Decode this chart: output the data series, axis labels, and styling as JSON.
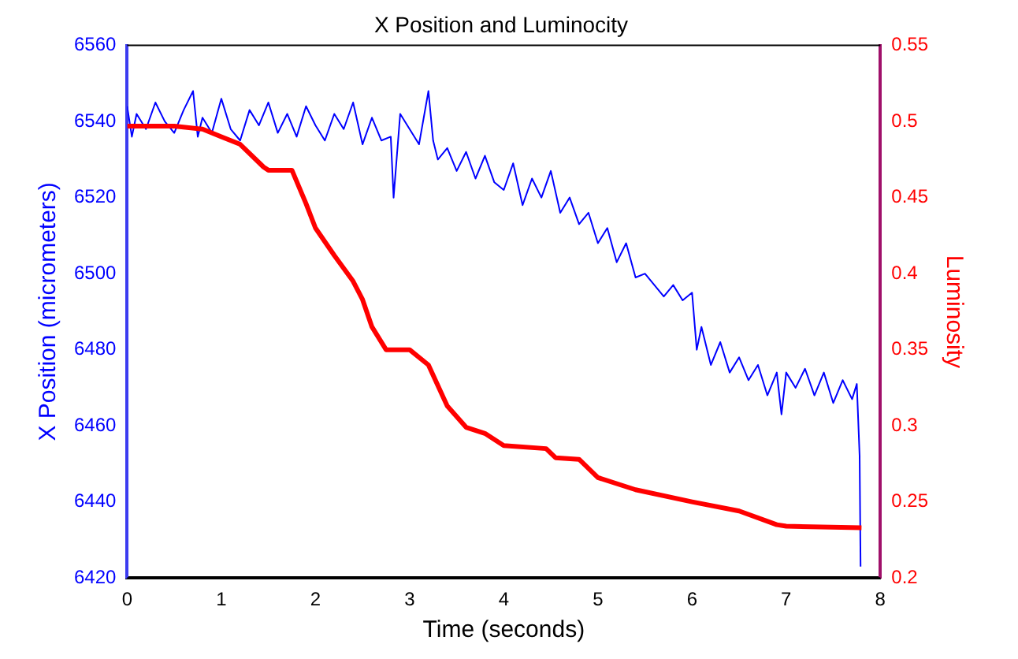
{
  "chart_data": {
    "type": "line",
    "title": "X Position and Luminocity",
    "xlabel": "Time (seconds)",
    "ylabel": "X Position (micrometers)",
    "y2label": "Luminosity",
    "xlim": [
      0,
      8
    ],
    "xticks": [
      0,
      1,
      2,
      3,
      4,
      5,
      6,
      7,
      8
    ],
    "ylim": [
      6420,
      6560
    ],
    "yticks": [
      6420,
      6440,
      6460,
      6480,
      6500,
      6520,
      6540,
      6560
    ],
    "y2lim": [
      0.2,
      0.55
    ],
    "y2ticks": [
      0.2,
      0.25,
      0.3,
      0.35,
      0.4,
      0.45,
      0.5,
      0.55
    ],
    "grid": false,
    "legend": false,
    "marker": "none",
    "line_style": "solid",
    "series": [
      {
        "color": "#0000ff",
        "x": [
          0,
          0.05,
          0.1,
          0.2,
          0.3,
          0.4,
          0.5,
          0.6,
          0.7,
          0.75,
          0.8,
          0.9,
          1.0,
          1.1,
          1.2,
          1.3,
          1.4,
          1.5,
          1.6,
          1.7,
          1.8,
          1.9,
          2.0,
          2.1,
          2.2,
          2.3,
          2.4,
          2.5,
          2.6,
          2.7,
          2.8,
          2.83,
          2.9,
          3.0,
          3.1,
          3.2,
          3.25,
          3.3,
          3.4,
          3.5,
          3.6,
          3.7,
          3.8,
          3.9,
          4.0,
          4.1,
          4.2,
          4.3,
          4.4,
          4.5,
          4.6,
          4.7,
          4.8,
          4.9,
          5.0,
          5.1,
          5.2,
          5.3,
          5.4,
          5.5,
          5.6,
          5.7,
          5.8,
          5.9,
          6.0,
          6.05,
          6.1,
          6.2,
          6.3,
          6.4,
          6.5,
          6.6,
          6.7,
          6.8,
          6.9,
          6.95,
          7.0,
          7.1,
          7.2,
          7.3,
          7.4,
          7.5,
          7.6,
          7.7,
          7.75,
          7.78,
          7.79
        ],
        "values": [
          6544,
          6536,
          6542,
          6538,
          6545,
          6540,
          6537,
          6543,
          6548,
          6536,
          6541,
          6537,
          6546,
          6538,
          6535,
          6543,
          6539,
          6545,
          6537,
          6542,
          6536,
          6544,
          6539,
          6535,
          6542,
          6538,
          6545,
          6534,
          6541,
          6535,
          6536,
          6520,
          6542,
          6538,
          6534,
          6548,
          6535,
          6530,
          6533,
          6527,
          6532,
          6525,
          6531,
          6524,
          6522,
          6529,
          6518,
          6525,
          6520,
          6527,
          6516,
          6520,
          6513,
          6516,
          6508,
          6512,
          6503,
          6508,
          6499,
          6500,
          6497,
          6494,
          6497,
          6493,
          6495,
          6480,
          6486,
          6476,
          6482,
          6474,
          6478,
          6472,
          6476,
          6468,
          6474,
          6463,
          6474,
          6470,
          6475,
          6468,
          6474,
          6466,
          6472,
          6467,
          6471,
          6452,
          6423
        ]
      },
      {
        "color": "#ff0000",
        "axis": "y2",
        "x": [
          0,
          0.5,
          0.8,
          1.0,
          1.2,
          1.45,
          1.5,
          1.75,
          1.9,
          2.0,
          2.2,
          2.4,
          2.5,
          2.6,
          2.75,
          3.0,
          3.2,
          3.4,
          3.6,
          3.8,
          4.0,
          4.45,
          4.55,
          4.8,
          5.0,
          5.4,
          6.0,
          6.5,
          6.9,
          7.0,
          7.8
        ],
        "values": [
          0.497,
          0.497,
          0.495,
          0.49,
          0.485,
          0.47,
          0.468,
          0.468,
          0.446,
          0.43,
          0.412,
          0.395,
          0.383,
          0.365,
          0.35,
          0.35,
          0.34,
          0.313,
          0.299,
          0.295,
          0.287,
          0.285,
          0.279,
          0.278,
          0.266,
          0.258,
          0.25,
          0.244,
          0.235,
          0.234,
          0.233
        ]
      }
    ]
  }
}
